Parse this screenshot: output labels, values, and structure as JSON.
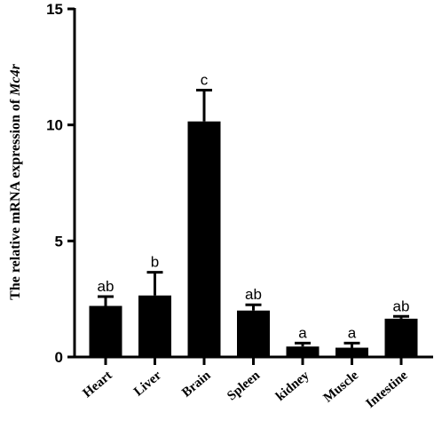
{
  "chart_data": {
    "type": "bar",
    "categories": [
      "Heart",
      "Liver",
      "Brain",
      "Spleen",
      "kidney",
      "Muscle",
      "Intestine"
    ],
    "values": [
      2.2,
      2.65,
      10.15,
      2.0,
      0.45,
      0.4,
      1.65
    ],
    "errors": [
      0.4,
      1.0,
      1.35,
      0.25,
      0.15,
      0.2,
      0.1
    ],
    "significance": [
      "ab",
      "b",
      "c",
      "ab",
      "a",
      "a",
      "ab"
    ],
    "title": "",
    "xlabel": "",
    "ylabel_prefix": "The relative mRNA expression of ",
    "ylabel_gene": "Mc4r",
    "ylim": [
      0,
      15
    ],
    "yticks": [
      0,
      5,
      10,
      15
    ],
    "bar_color": "#000000",
    "grid": false,
    "legend": false
  }
}
